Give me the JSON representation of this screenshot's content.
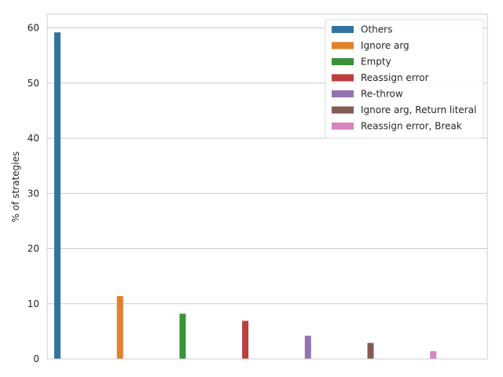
{
  "chart_data": {
    "type": "bar",
    "ylabel": "% of strategies",
    "xlabel": "",
    "ylim": [
      0,
      62.5
    ],
    "yticks": [
      0,
      10,
      20,
      30,
      40,
      50,
      60
    ],
    "grid": "horizontal",
    "legend_position": "top-right",
    "series": [
      {
        "name": "Others",
        "value": 59.2,
        "color": "#3274a1"
      },
      {
        "name": "Ignore arg",
        "value": 11.4,
        "color": "#e1812c"
      },
      {
        "name": "Empty",
        "value": 8.2,
        "color": "#3a923a"
      },
      {
        "name": "Reassign error",
        "value": 6.9,
        "color": "#c03d3e"
      },
      {
        "name": "Re-throw",
        "value": 4.2,
        "color": "#9372b2"
      },
      {
        "name": "Ignore arg, Return literal",
        "value": 2.9,
        "color": "#845b53"
      },
      {
        "name": "Reassign error, Break",
        "value": 1.4,
        "color": "#d684bd"
      }
    ]
  }
}
